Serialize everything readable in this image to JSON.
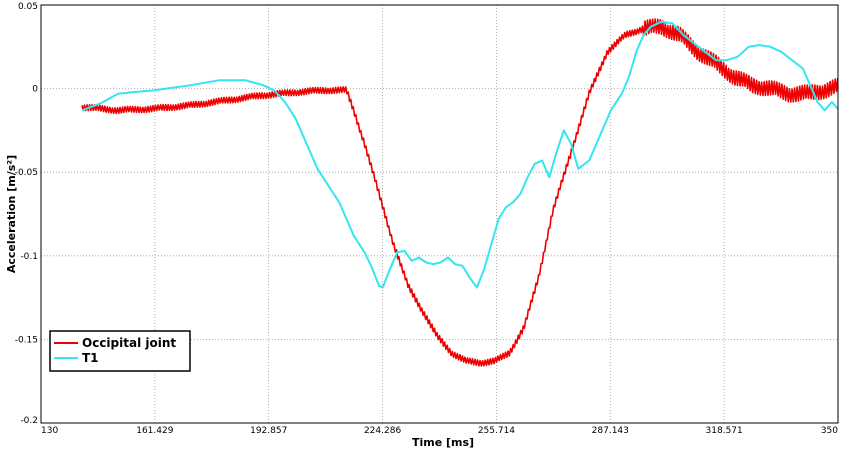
{
  "chart_data": {
    "type": "line",
    "title": "",
    "xlabel": "Time [ms]",
    "ylabel": "Acceleration  [m/s²]",
    "xlim": [
      130,
      350
    ],
    "ylim": [
      -0.2,
      0.05
    ],
    "x_ticks": [
      {
        "value": 130,
        "label": "130"
      },
      {
        "value": 161.429,
        "label": "161.429"
      },
      {
        "value": 192.857,
        "label": "192.857"
      },
      {
        "value": 224.286,
        "label": "224.286"
      },
      {
        "value": 255.714,
        "label": "255.714"
      },
      {
        "value": 287.143,
        "label": "287.143"
      },
      {
        "value": 318.571,
        "label": "318.571"
      },
      {
        "value": 350,
        "label": "350"
      }
    ],
    "y_ticks": [
      {
        "value": 0.05,
        "label": "0.05"
      },
      {
        "value": 0,
        "label": "0"
      },
      {
        "value": -0.05,
        "label": "-0.05"
      },
      {
        "value": -0.1,
        "label": "-0.1"
      },
      {
        "value": -0.15,
        "label": "-0.15"
      },
      {
        "value": -0.2,
        "label": "-0.2"
      }
    ],
    "grid": true,
    "legend_position": "bottom-left",
    "series": [
      {
        "name": "Occipital joint",
        "color": "#ee0000",
        "noise": 0.002,
        "x": [
          130,
          140,
          150,
          160,
          170,
          180,
          190,
          197,
          203,
          205,
          208,
          212,
          216,
          220,
          224,
          228,
          232,
          236,
          240,
          244,
          248,
          252,
          256,
          260,
          265,
          270,
          275,
          280,
          285,
          290,
          295,
          300,
          305,
          310,
          315,
          320,
          325,
          330,
          335,
          340,
          345,
          350
        ],
        "y": [
          -0.008,
          -0.01,
          -0.009,
          -0.007,
          -0.004,
          -0.001,
          0.001,
          0.002,
          0.002,
          -0.01,
          -0.03,
          -0.06,
          -0.09,
          -0.115,
          -0.13,
          -0.145,
          -0.155,
          -0.16,
          -0.161,
          -0.16,
          -0.155,
          -0.14,
          -0.11,
          -0.07,
          -0.035,
          0.0,
          0.025,
          0.035,
          0.039,
          0.04,
          0.035,
          0.025,
          0.018,
          0.01,
          0.005,
          0.003,
          0.0,
          0.0,
          0.002,
          0.005,
          0.008,
          0.01
        ]
      },
      {
        "name": "T1",
        "color": "#33e6f0",
        "noise": 0,
        "x": [
          130,
          135,
          140,
          150,
          160,
          168,
          175,
          180,
          183,
          186,
          189,
          192,
          195,
          198,
          201,
          203,
          205,
          208,
          210,
          212,
          213,
          215,
          217,
          219,
          221,
          223,
          225,
          227,
          229,
          231,
          233,
          235,
          237,
          239,
          241,
          243,
          245,
          247,
          249,
          251,
          253,
          255,
          257,
          259,
          261,
          263,
          265,
          267,
          270,
          273,
          276,
          279,
          281,
          283,
          285,
          287,
          290,
          293,
          296,
          299,
          302,
          305,
          308,
          311,
          314,
          317,
          320,
          323,
          326,
          329,
          331,
          333,
          335,
          337,
          339,
          341,
          343,
          346,
          350
        ],
        "y": [
          -0.01,
          -0.006,
          0.0,
          0.002,
          0.005,
          0.008,
          0.008,
          0.005,
          0.002,
          -0.005,
          -0.015,
          -0.03,
          -0.045,
          -0.055,
          -0.065,
          -0.075,
          -0.085,
          -0.095,
          -0.104,
          -0.115,
          -0.116,
          -0.105,
          -0.095,
          -0.094,
          -0.1,
          -0.098,
          -0.101,
          -0.102,
          -0.101,
          -0.098,
          -0.102,
          -0.103,
          -0.11,
          -0.116,
          -0.105,
          -0.09,
          -0.075,
          -0.068,
          -0.065,
          -0.06,
          -0.05,
          -0.042,
          -0.04,
          -0.05,
          -0.035,
          -0.022,
          -0.03,
          -0.045,
          -0.04,
          -0.025,
          -0.01,
          0.0,
          0.01,
          0.025,
          0.035,
          0.04,
          0.043,
          0.042,
          0.035,
          0.03,
          0.025,
          0.02,
          0.02,
          0.022,
          0.028,
          0.029,
          0.028,
          0.025,
          0.02,
          0.015,
          0.005,
          -0.005,
          -0.01,
          -0.005,
          -0.01,
          -0.015,
          -0.005,
          0.0,
          0.002
        ]
      }
    ]
  }
}
